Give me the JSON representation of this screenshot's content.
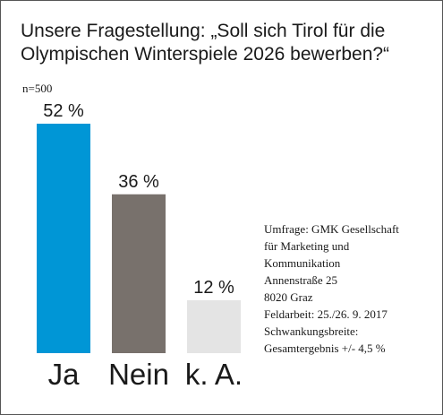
{
  "title": {
    "line1": "Unsere Fragestellung: „Soll sich Tirol für die",
    "line2": "Olympischen Winterspiele 2026 bewerben?“"
  },
  "sample_size": "n=500",
  "chart_data": {
    "type": "bar",
    "title": "Unsere Fragestellung: „Soll sich Tirol für die Olympischen Winterspiele 2026 bewerben?“",
    "categories": [
      "Ja",
      "Nein",
      "k. A."
    ],
    "values": [
      52,
      36,
      12
    ],
    "value_labels": [
      "52 %",
      "36 %",
      "12 %"
    ],
    "colors": [
      "#0096d6",
      "#78716c",
      "#e4e4e4"
    ],
    "ylim": [
      0,
      52
    ],
    "grid": false,
    "legend": "none"
  },
  "source": {
    "lines": [
      "Umfrage: GMK Gesellschaft",
      "für Marketing und",
      "Kommunikation",
      "Annenstraße 25",
      "8020 Graz",
      "Feldarbeit: 25./26. 9. 2017",
      "Schwankungsbreite:",
      "Gesamtergebnis +/- 4,5 %"
    ]
  }
}
